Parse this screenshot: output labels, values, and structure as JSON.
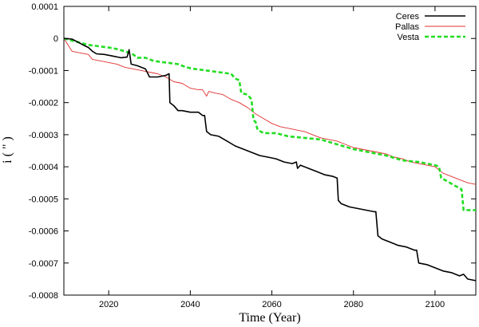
{
  "chart_data": {
    "type": "line",
    "title": "",
    "xlabel": "Time (Year)",
    "ylabel": "i ( \" )",
    "xlim": [
      2009,
      2110
    ],
    "ylim": [
      -0.0008,
      0.0001
    ],
    "xticks": [
      2020,
      2040,
      2060,
      2080,
      2100
    ],
    "xtick_labels": [
      "2020",
      "2040",
      "2060",
      "2080",
      "2100"
    ],
    "yticks": [
      0.0001,
      0,
      -0.0001,
      -0.0002,
      -0.0003,
      -0.0004,
      -0.0005,
      -0.0006,
      -0.0007,
      -0.0008
    ],
    "ytick_labels": [
      "0.0001",
      "0",
      "-0.0001",
      "-0.0002",
      "-0.0003",
      "-0.0004",
      "-0.0005",
      "-0.0006",
      "-0.0007",
      "-0.0008"
    ],
    "grid": false,
    "legend_position": "top-right",
    "series": [
      {
        "name": "Ceres",
        "color": "#000000",
        "style": "solid-thick",
        "points": [
          [
            2009,
            0
          ],
          [
            2011,
            -2e-06
          ],
          [
            2013,
            -1.5e-05
          ],
          [
            2014,
            -2.2e-05
          ],
          [
            2015,
            -2.8e-05
          ],
          [
            2016,
            -4e-05
          ],
          [
            2017,
            -4.8e-05
          ],
          [
            2019,
            -5e-05
          ],
          [
            2021,
            -5.5e-05
          ],
          [
            2023,
            -6e-05
          ],
          [
            2024.5,
            -5.8e-05
          ],
          [
            2025,
            -3.5e-05
          ],
          [
            2025.5,
            -8e-05
          ],
          [
            2027,
            -8.5e-05
          ],
          [
            2029,
            -9.5e-05
          ],
          [
            2030,
            -0.00012
          ],
          [
            2032,
            -0.00012
          ],
          [
            2034,
            -0.000115
          ],
          [
            2034.8,
            -0.00011
          ],
          [
            2035,
            -0.0002
          ],
          [
            2036,
            -0.00021
          ],
          [
            2037,
            -0.000225
          ],
          [
            2038,
            -0.000225
          ],
          [
            2040,
            -0.00023
          ],
          [
            2042,
            -0.00023
          ],
          [
            2043,
            -0.00024
          ],
          [
            2043.5,
            -0.00024
          ],
          [
            2044,
            -0.00029
          ],
          [
            2045,
            -0.0003
          ],
          [
            2047,
            -0.000305
          ],
          [
            2049,
            -0.00032
          ],
          [
            2051,
            -0.000335
          ],
          [
            2053,
            -0.000345
          ],
          [
            2055,
            -0.000355
          ],
          [
            2057,
            -0.000365
          ],
          [
            2059,
            -0.00037
          ],
          [
            2061,
            -0.000375
          ],
          [
            2063,
            -0.000385
          ],
          [
            2065,
            -0.00039
          ],
          [
            2066,
            -0.000385
          ],
          [
            2066.3,
            -0.000405
          ],
          [
            2067,
            -0.000395
          ],
          [
            2069,
            -0.000405
          ],
          [
            2071,
            -0.000415
          ],
          [
            2073,
            -0.000425
          ],
          [
            2075,
            -0.00043
          ],
          [
            2076,
            -0.000435
          ],
          [
            2076.3,
            -0.000505
          ],
          [
            2077,
            -0.000515
          ],
          [
            2079,
            -0.000525
          ],
          [
            2081,
            -0.00053
          ],
          [
            2083,
            -0.000535
          ],
          [
            2085,
            -0.00054
          ],
          [
            2085.5,
            -0.00054
          ],
          [
            2086,
            -0.000615
          ],
          [
            2087,
            -0.000625
          ],
          [
            2089,
            -0.000635
          ],
          [
            2091,
            -0.000645
          ],
          [
            2093,
            -0.00065
          ],
          [
            2095,
            -0.00066
          ],
          [
            2095.5,
            -0.00066
          ],
          [
            2096,
            -0.0007
          ],
          [
            2098,
            -0.000705
          ],
          [
            2100,
            -0.000715
          ],
          [
            2102,
            -0.000725
          ],
          [
            2104,
            -0.00073
          ],
          [
            2106,
            -0.00074
          ],
          [
            2107,
            -0.000735
          ],
          [
            2108,
            -0.00075
          ],
          [
            2110,
            -0.000755
          ]
        ]
      },
      {
        "name": "Pallas",
        "color": "#e03030",
        "style": "solid-thin",
        "points": [
          [
            2009,
            0
          ],
          [
            2010,
            -2e-05
          ],
          [
            2011,
            -4e-05
          ],
          [
            2013,
            -4.5e-05
          ],
          [
            2015,
            -5e-05
          ],
          [
            2016,
            -6.5e-05
          ],
          [
            2018,
            -7e-05
          ],
          [
            2020,
            -7.5e-05
          ],
          [
            2022,
            -8e-05
          ],
          [
            2024,
            -9e-05
          ],
          [
            2026,
            -9.5e-05
          ],
          [
            2028,
            -0.0001
          ],
          [
            2030,
            -0.000105
          ],
          [
            2032,
            -0.00011
          ],
          [
            2034,
            -0.00012
          ],
          [
            2036,
            -0.000135
          ],
          [
            2038,
            -0.00014
          ],
          [
            2040,
            -0.000155
          ],
          [
            2042,
            -0.00016
          ],
          [
            2043,
            -0.00016
          ],
          [
            2044,
            -0.00018
          ],
          [
            2044.5,
            -0.000165
          ],
          [
            2046,
            -0.00017
          ],
          [
            2048,
            -0.000175
          ],
          [
            2050,
            -0.00019
          ],
          [
            2052,
            -0.0002
          ],
          [
            2054,
            -0.000215
          ],
          [
            2056,
            -0.000235
          ],
          [
            2058,
            -0.00025
          ],
          [
            2060,
            -0.000265
          ],
          [
            2062,
            -0.000275
          ],
          [
            2064,
            -0.00028
          ],
          [
            2066,
            -0.000285
          ],
          [
            2068,
            -0.00029
          ],
          [
            2070,
            -0.0003
          ],
          [
            2072,
            -0.00031
          ],
          [
            2074,
            -0.000315
          ],
          [
            2076,
            -0.00032
          ],
          [
            2078,
            -0.00033
          ],
          [
            2080,
            -0.00034
          ],
          [
            2082,
            -0.000345
          ],
          [
            2084,
            -0.00035
          ],
          [
            2086,
            -0.000355
          ],
          [
            2088,
            -0.00036
          ],
          [
            2090,
            -0.00037
          ],
          [
            2092,
            -0.000375
          ],
          [
            2094,
            -0.000385
          ],
          [
            2096,
            -0.00039
          ],
          [
            2098,
            -0.000395
          ],
          [
            2100,
            -0.0004
          ],
          [
            2102,
            -0.00042
          ],
          [
            2104,
            -0.00043
          ],
          [
            2106,
            -0.00044
          ],
          [
            2108,
            -0.00045
          ],
          [
            2110,
            -0.000455
          ]
        ]
      },
      {
        "name": "Vesta",
        "color": "#22dd22",
        "style": "dashed-thick",
        "points": [
          [
            2009,
            0
          ],
          [
            2012,
            -1e-05
          ],
          [
            2015,
            -2e-05
          ],
          [
            2018,
            -2.5e-05
          ],
          [
            2021,
            -3e-05
          ],
          [
            2024,
            -4e-05
          ],
          [
            2026,
            -5e-05
          ],
          [
            2027,
            -6e-05
          ],
          [
            2029,
            -6e-05
          ],
          [
            2031,
            -7e-05
          ],
          [
            2034,
            -7.5e-05
          ],
          [
            2037,
            -8e-05
          ],
          [
            2039,
            -9e-05
          ],
          [
            2041,
            -9.5e-05
          ],
          [
            2044,
            -0.0001
          ],
          [
            2047,
            -0.000105
          ],
          [
            2050,
            -0.00011
          ],
          [
            2051,
            -0.000125
          ],
          [
            2052,
            -0.00013
          ],
          [
            2052.5,
            -0.00017
          ],
          [
            2054,
            -0.000175
          ],
          [
            2055,
            -0.00019
          ],
          [
            2055.5,
            -0.000255
          ],
          [
            2056,
            -0.00026
          ],
          [
            2056.5,
            -0.000285
          ],
          [
            2058,
            -0.000295
          ],
          [
            2061,
            -0.000295
          ],
          [
            2064,
            -0.000305
          ],
          [
            2068,
            -0.00031
          ],
          [
            2072,
            -0.000315
          ],
          [
            2076,
            -0.00033
          ],
          [
            2080,
            -0.000345
          ],
          [
            2084,
            -0.000355
          ],
          [
            2088,
            -0.000365
          ],
          [
            2092,
            -0.00038
          ],
          [
            2096,
            -0.000385
          ],
          [
            2100,
            -0.000395
          ],
          [
            2101,
            -0.0004
          ],
          [
            2101.5,
            -0.000435
          ],
          [
            2103,
            -0.000445
          ],
          [
            2105,
            -0.00046
          ],
          [
            2106.5,
            -0.00047
          ],
          [
            2107,
            -0.000535
          ],
          [
            2110,
            -0.000535
          ]
        ]
      }
    ]
  }
}
